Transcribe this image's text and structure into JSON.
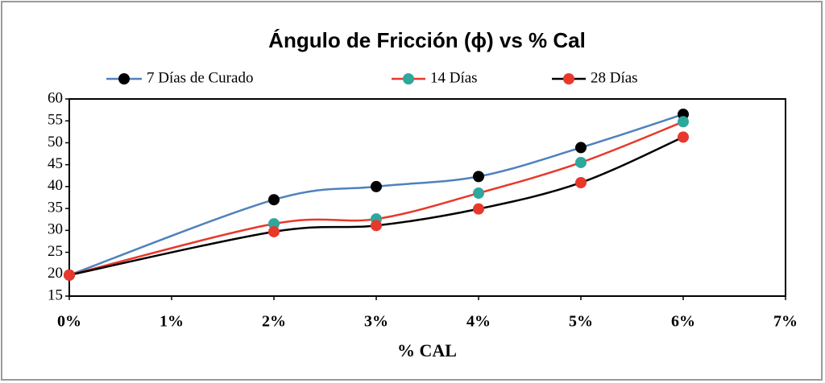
{
  "chart_data": {
    "type": "line",
    "title": "Ángulo de Fricción (ϕ) vs % Cal",
    "x_label": "% CAL",
    "x": [
      0,
      2,
      3,
      4,
      5,
      6
    ],
    "series": [
      {
        "name": "7 Días de Curado",
        "color": "#4f81bd",
        "marker_color": "#000000",
        "values": [
          19.8,
          37,
          40,
          42.3,
          48.9,
          56.5
        ]
      },
      {
        "name": "14 Días",
        "color": "#e8382b",
        "marker_color": "#2ea79c",
        "values": [
          19.8,
          31.5,
          32.6,
          38.5,
          45.5,
          54.8
        ]
      },
      {
        "name": "28 Días",
        "color": "#000000",
        "marker_color": "#e8382b",
        "values": [
          19.8,
          29.7,
          31.1,
          34.9,
          40.9,
          51.3
        ]
      }
    ],
    "xlim": [
      0,
      7
    ],
    "xticks": [
      {
        "value": 0,
        "label": "0%"
      },
      {
        "value": 1,
        "label": "1%"
      },
      {
        "value": 2,
        "label": "2%"
      },
      {
        "value": 3,
        "label": "3%"
      },
      {
        "value": 4,
        "label": "4%"
      },
      {
        "value": 5,
        "label": "5%"
      },
      {
        "value": 6,
        "label": "6%"
      },
      {
        "value": 7,
        "label": "7%"
      }
    ],
    "ylim": [
      15,
      60
    ],
    "yticks": [
      15,
      20,
      25,
      30,
      35,
      40,
      45,
      50,
      55,
      60
    ],
    "legend": "top",
    "smooth": true
  }
}
